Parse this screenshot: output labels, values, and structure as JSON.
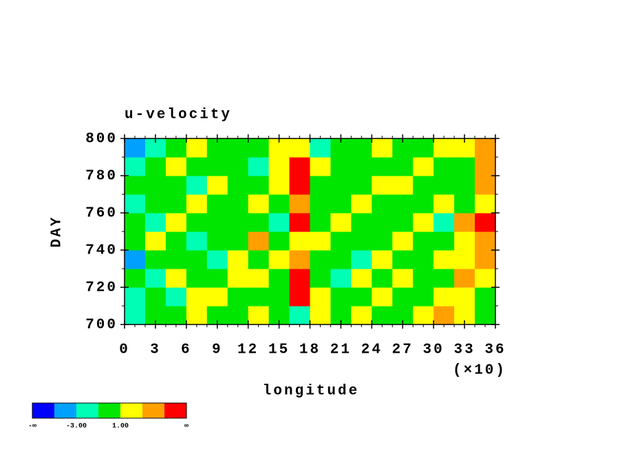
{
  "chart_data": {
    "type": "heatmap",
    "title": "u-velocity",
    "x_label": "longitude",
    "y_label": "DAY",
    "x_multiplier": "(×10)",
    "xlim": [
      0,
      36
    ],
    "xticks": [
      0,
      3,
      6,
      9,
      12,
      15,
      18,
      21,
      24,
      27,
      30,
      33,
      36
    ],
    "ylim": [
      700,
      800
    ],
    "yticks": [
      700,
      720,
      740,
      760,
      780,
      800
    ],
    "x_edges": [
      0,
      2,
      4,
      6,
      8,
      10,
      12,
      14,
      16,
      18,
      20,
      22,
      24,
      26,
      28,
      30,
      32,
      34,
      36
    ],
    "y_edges": [
      700,
      710,
      720,
      730,
      740,
      750,
      760,
      770,
      780,
      790,
      800
    ],
    "z": [
      [
        -2,
        -1,
        0,
        1,
        0,
        -1,
        2,
        0,
        -3,
        2,
        0,
        1,
        -1,
        0,
        2,
        3,
        1,
        -1
      ],
      [
        -3,
        0,
        -2,
        1,
        2,
        0,
        -1,
        0,
        5,
        1,
        -1,
        0,
        2,
        -1,
        0,
        1,
        2,
        0
      ],
      [
        0,
        -2,
        1,
        -1,
        0,
        2,
        1,
        0,
        6,
        0,
        -2,
        1,
        0,
        2,
        -1,
        0,
        3,
        2
      ],
      [
        -4,
        0,
        -1,
        0,
        -2,
        1,
        0,
        2,
        4,
        -1,
        0,
        -2,
        1,
        0,
        0,
        2,
        1,
        3
      ],
      [
        -1,
        2,
        0,
        -2,
        0,
        -1,
        3,
        0,
        2,
        1,
        -1,
        0,
        0,
        1,
        -1,
        0,
        2,
        4
      ],
      [
        0,
        -3,
        1,
        0,
        -1,
        0,
        0,
        -2,
        5,
        0,
        2,
        0,
        -1,
        0,
        1,
        -2,
        3,
        6
      ],
      [
        -2,
        0,
        -1,
        2,
        0,
        -1,
        1,
        0,
        3,
        -1,
        0,
        1,
        0,
        -1,
        0,
        2,
        0,
        1
      ],
      [
        0,
        -1,
        0,
        -2,
        1,
        0,
        -1,
        2,
        5,
        0,
        -1,
        0,
        2,
        1,
        0,
        0,
        -1,
        3
      ],
      [
        -3,
        0,
        1,
        0,
        -1,
        0,
        -2,
        1,
        6,
        2,
        0,
        -1,
        0,
        0,
        2,
        -1,
        0,
        4
      ],
      [
        -4,
        -2,
        0,
        1,
        0,
        -1,
        0,
        2,
        1,
        -2,
        0,
        0,
        1,
        -1,
        0,
        2,
        1,
        3
      ]
    ],
    "colorbar": {
      "colors": [
        "#0000ff",
        "#00a0ff",
        "#00ffb4",
        "#00e600",
        "#ffff00",
        "#ffa000",
        "#ff0000"
      ],
      "levels": [
        {
          "value": -5,
          "label": null
        },
        {
          "value": -3,
          "label": "-3.00"
        },
        {
          "value": -1,
          "label": null
        },
        {
          "value": 1,
          "label": "1.00"
        },
        {
          "value": 3,
          "label": null
        },
        {
          "value": 5,
          "label": null
        }
      ],
      "end_labels": [
        "-∞",
        "∞"
      ]
    }
  }
}
